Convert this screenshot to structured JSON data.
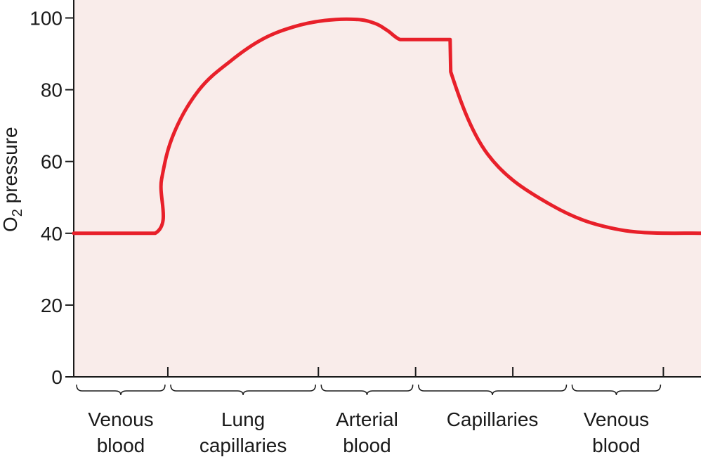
{
  "chart_data": {
    "type": "line",
    "title": "",
    "xlabel": "",
    "ylabel": {
      "base": "O",
      "subscript": "2",
      "rest": " pressure"
    },
    "ylim": [
      0,
      105
    ],
    "yticks": [
      "0",
      "20",
      "40",
      "60",
      "80",
      "100"
    ],
    "grid": false,
    "background_color": "#f9ecea",
    "line_color": "#e8202a",
    "axis_color": "#1a1a1a",
    "series": [
      {
        "x": [
          0,
          13,
          14,
          16,
          20,
          25,
          30,
          35,
          40,
          45,
          48,
          50,
          52,
          54,
          57,
          59,
          60,
          60.1,
          66,
          76,
          87,
          100
        ],
        "values": [
          40,
          40,
          55,
          68,
          80,
          88,
          94,
          97.5,
          99.3,
          99.6,
          98.5,
          96.5,
          94,
          94,
          94,
          94,
          94,
          85,
          62,
          48,
          41,
          40
        ]
      }
    ],
    "x_ticks": [
      15,
      39,
      54.5,
      70,
      94,
      108
    ],
    "regions": [
      {
        "lines": [
          "Venous",
          "blood"
        ],
        "from": 0,
        "to": 15
      },
      {
        "lines": [
          "Lung",
          "capillaries"
        ],
        "from": 15,
        "to": 39
      },
      {
        "lines": [
          "Arterial",
          "blood"
        ],
        "from": 39,
        "to": 54.5
      },
      {
        "lines": [
          "Capillaries"
        ],
        "from": 54.5,
        "to": 79
      },
      {
        "lines": [
          "Venous",
          "blood"
        ],
        "from": 79,
        "to": 94
      }
    ]
  }
}
